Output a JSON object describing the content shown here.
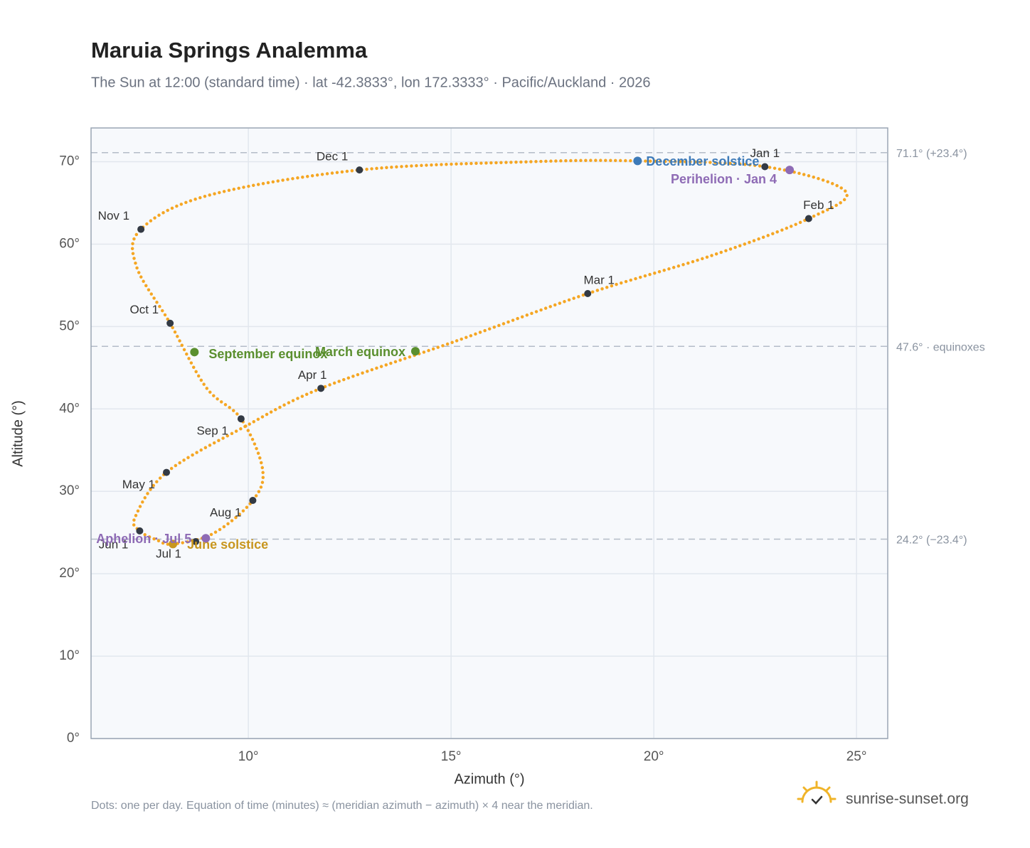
{
  "chart_data": {
    "type": "analemma",
    "title": "Maruia Springs Analemma",
    "subtitle": "The Sun at 12:00 (standard time) · lat -42.3833°, lon 172.3333° · Pacific/Auckland · 2026",
    "x_label": "Azimuth (°)",
    "y_label": "Altitude (°)",
    "note": "Dots: one per day. Equation of time (minutes) ≈ (meridian azimuth − azimuth) × 4 near the meridian.",
    "brand": "sunrise-sunset.org",
    "xlim": [
      6.12,
      25.77
    ],
    "ylim": [
      0,
      74.1
    ],
    "xticks": [
      {
        "value": 10,
        "label": "10°"
      },
      {
        "value": 15,
        "label": "15°"
      },
      {
        "value": 20,
        "label": "20°"
      },
      {
        "value": 25,
        "label": "25°"
      }
    ],
    "yticks": [
      {
        "value": 0,
        "label": "0°"
      },
      {
        "value": 10,
        "label": "10°"
      },
      {
        "value": 20,
        "label": "20°"
      },
      {
        "value": 30,
        "label": "30°"
      },
      {
        "value": 40,
        "label": "40°"
      },
      {
        "value": 50,
        "label": "50°"
      },
      {
        "value": 60,
        "label": "60°"
      },
      {
        "value": 70,
        "label": "70°"
      }
    ],
    "grid": true,
    "series": [
      {
        "color": "#f5a623",
        "x": [
          22.74,
          24.73,
          23.82,
          21.42,
          18.37,
          15.1,
          11.79,
          9.93,
          7.98,
          7.21,
          7.32,
          7.74,
          8.14,
          9.14,
          10.11,
          10.35,
          9.82,
          8.96,
          8.07,
          7.24,
          7.35,
          9.0,
          12.74,
          16.96,
          19.6
        ],
        "y": [
          69.4,
          66.4,
          63.1,
          58.6,
          54.0,
          48.2,
          42.5,
          37.9,
          32.3,
          26.9,
          25.2,
          24.1,
          23.6,
          24.9,
          28.9,
          32.7,
          38.8,
          42.6,
          50.4,
          57.3,
          61.8,
          65.9,
          69.0,
          70.0,
          70.1
        ]
      }
    ],
    "reference_lines": [
      {
        "value": 71.1,
        "label": "71.1° (+23.4°)"
      },
      {
        "value": 47.6,
        "label": "47.6° · equinoxes"
      },
      {
        "value": 24.2,
        "label": "24.2° (−23.4°)"
      }
    ],
    "markers": [
      {
        "label": "Jan 1",
        "x": 22.74,
        "y": 69.4
      },
      {
        "label": "Feb 1",
        "x": 23.82,
        "y": 63.1
      },
      {
        "label": "Mar 1",
        "x": 18.37,
        "y": 54.0
      },
      {
        "label": "Apr 1",
        "x": 11.79,
        "y": 42.5
      },
      {
        "label": "May 1",
        "x": 7.98,
        "y": 32.3
      },
      {
        "label": "Jun 1",
        "x": 7.32,
        "y": 25.2
      },
      {
        "label": "Jul 1",
        "x": 8.7,
        "y": 23.9
      },
      {
        "label": "Aug 1",
        "x": 10.11,
        "y": 28.9
      },
      {
        "label": "Sep 1",
        "x": 9.82,
        "y": 38.8
      },
      {
        "label": "Oct 1",
        "x": 8.07,
        "y": 50.4
      },
      {
        "label": "Nov 1",
        "x": 7.35,
        "y": 61.8
      },
      {
        "label": "Dec 1",
        "x": 12.74,
        "y": 69.0
      }
    ],
    "events": [
      {
        "label": "December solstice",
        "x": 19.6,
        "y": 70.1,
        "color": "#3d7ab8"
      },
      {
        "label": "Perihelion · Jan 4",
        "x": 23.35,
        "y": 69.0,
        "color": "#8e6bb5"
      },
      {
        "label": "March equinox",
        "x": 14.12,
        "y": 47.0,
        "color": "#5a8f2e"
      },
      {
        "label": "September equinox",
        "x": 8.67,
        "y": 46.9,
        "color": "#5a8f2e"
      },
      {
        "label": "June solstice",
        "x": 8.14,
        "y": 23.6,
        "color": "#c8961e"
      },
      {
        "label": "Aphelion · Jul 5",
        "x": 8.95,
        "y": 24.3,
        "color": "#8e6bb5"
      }
    ]
  }
}
